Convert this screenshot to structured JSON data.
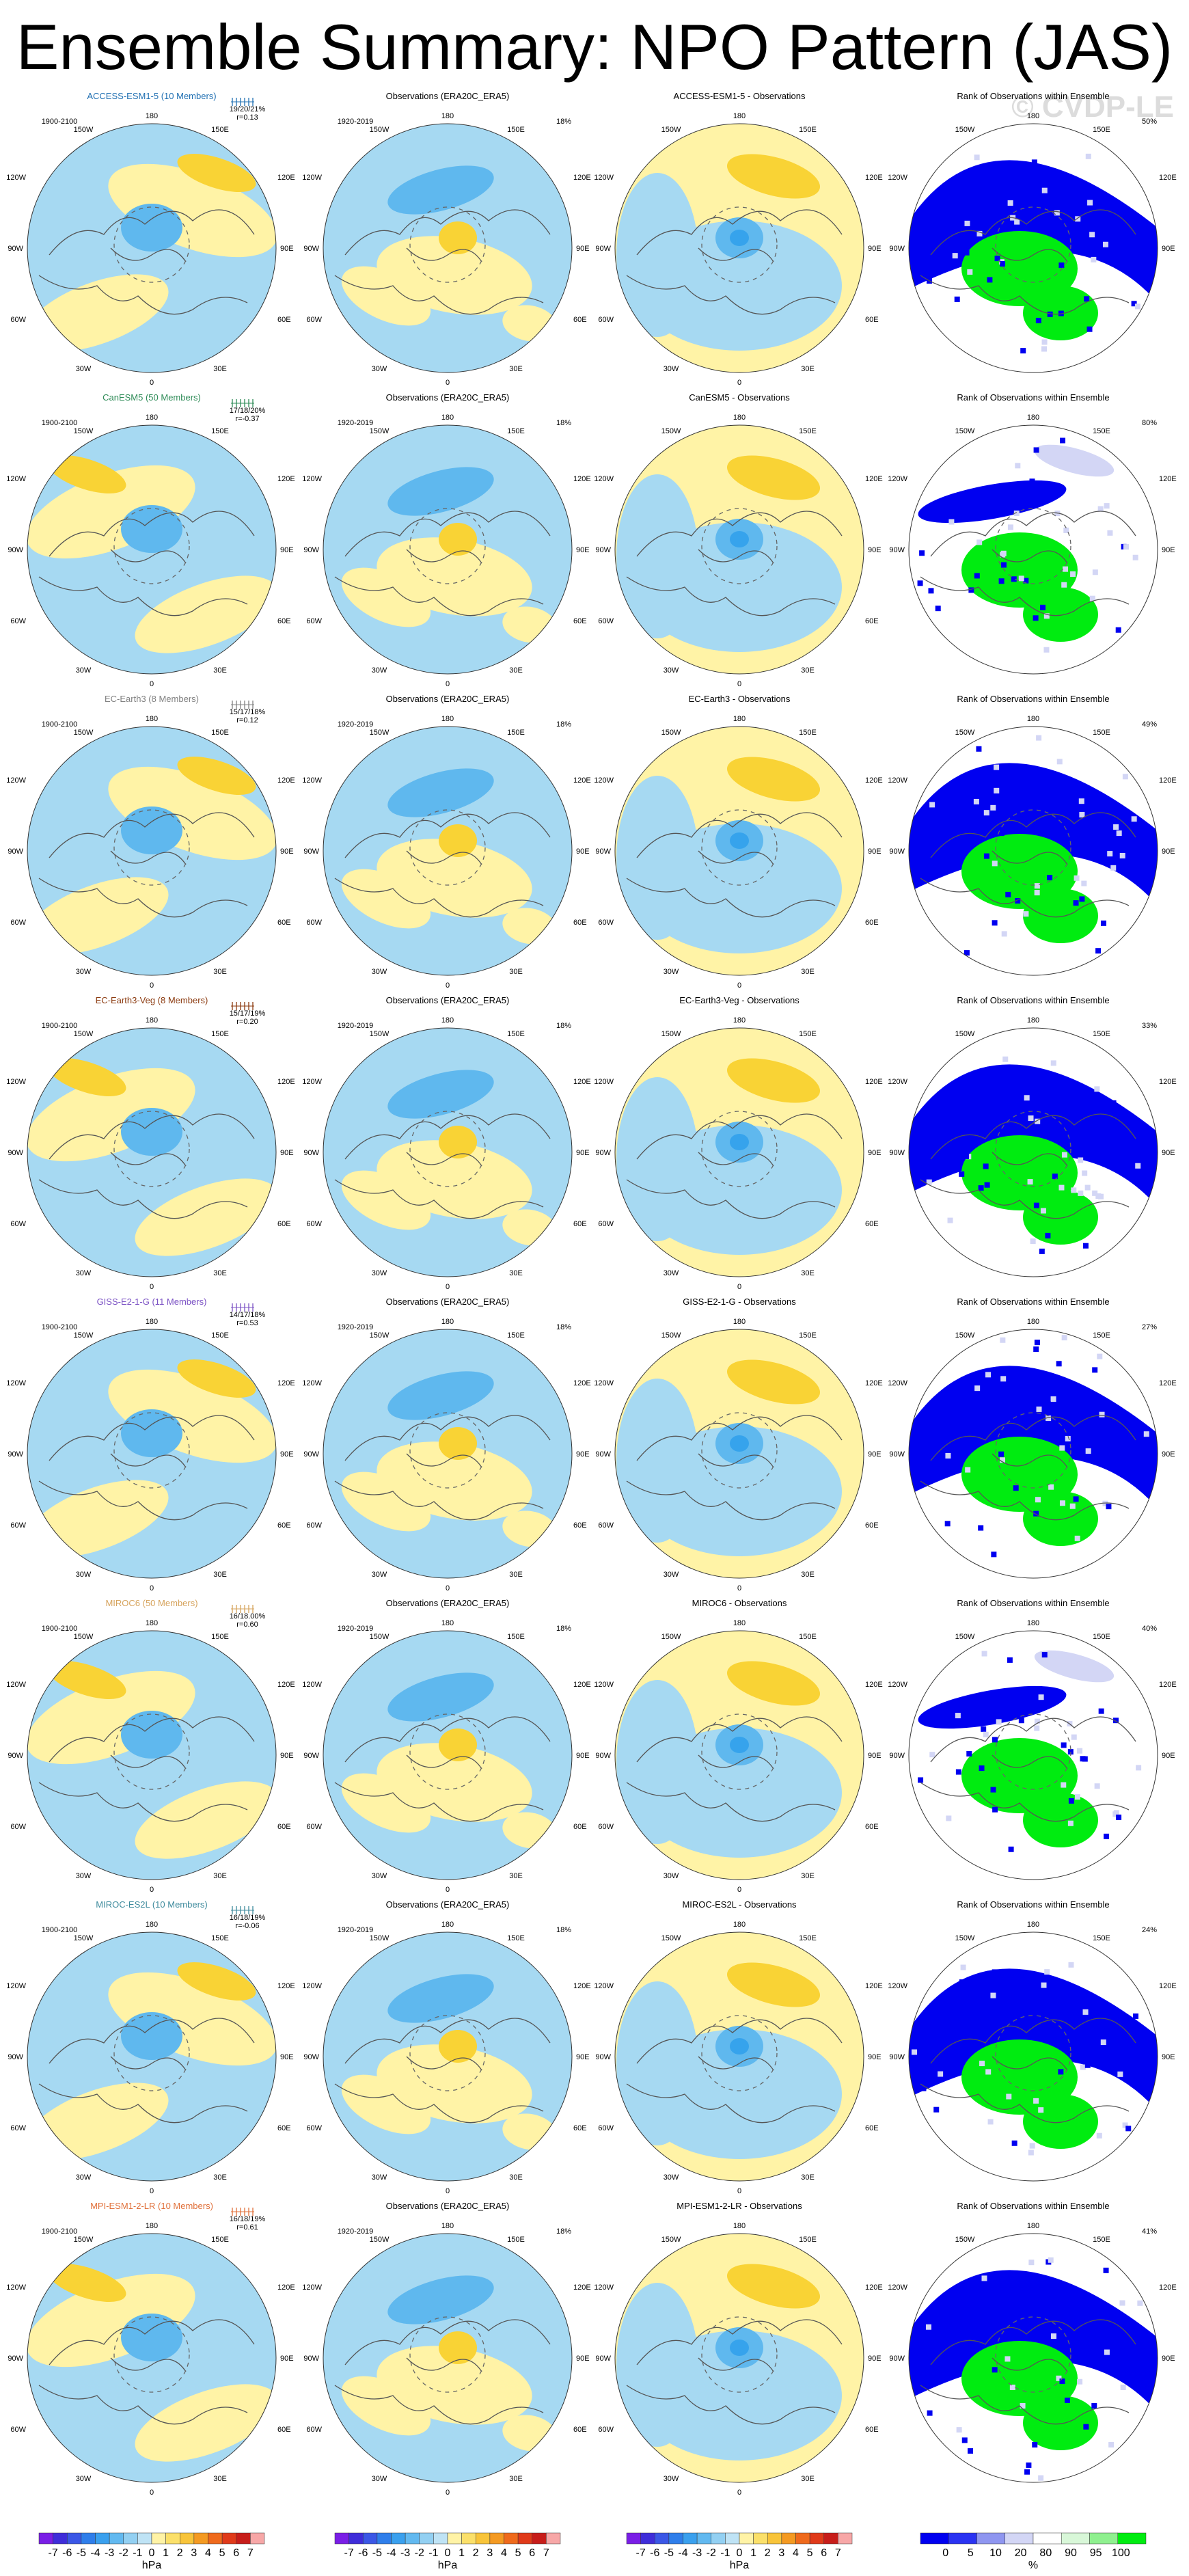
{
  "title": "Ensemble Summary: NPO Pattern (JAS)",
  "watermark": "© CVDP-LE",
  "colors": {
    "ocean_blue": "#a6d9f2",
    "light_blue": "#a6d9f2",
    "mid_blue": "#5fb8ee",
    "deep_blue": "#36a3ec",
    "pale_yellow": "#fff3a6",
    "gold": "#f9d335",
    "deep_gold": "#f6b928",
    "rank_blue": "#0000f0",
    "rank_light": "#d3d6f5",
    "rank_green": "#00ec10"
  },
  "rows": [
    {
      "model": "ACCESS-ESM1-5 (10 Members)",
      "model_color": "#1f6fb2",
      "model_period": "1900-2100",
      "pct_triplet": "19/20/21%",
      "r_value": "r=0.13",
      "obs_title": "Observations (ERA20C_ERA5)",
      "obs_period": "1920-2019",
      "obs_pct": "18%",
      "diff_title": "ACCESS-ESM1-5 - Observations",
      "rank_title": "Rank of Observations within Ensemble",
      "rank_pct": "50%"
    },
    {
      "model": "CanESM5 (50 Members)",
      "model_color": "#2e8b57",
      "model_period": "1900-2100",
      "pct_triplet": "17/18/20%",
      "r_value": "r=-0.37",
      "obs_title": "Observations (ERA20C_ERA5)",
      "obs_period": "1920-2019",
      "obs_pct": "18%",
      "diff_title": "CanESM5 - Observations",
      "rank_title": "Rank of Observations within Ensemble",
      "rank_pct": "80%"
    },
    {
      "model": "EC-Earth3 (8 Members)",
      "model_color": "#808080",
      "model_period": "1900-2100",
      "pct_triplet": "15/17/18%",
      "r_value": "r=0.12",
      "obs_title": "Observations (ERA20C_ERA5)",
      "obs_period": "1920-2019",
      "obs_pct": "18%",
      "diff_title": "EC-Earth3 - Observations",
      "rank_title": "Rank of Observations within Ensemble",
      "rank_pct": "49%"
    },
    {
      "model": "EC-Earth3-Veg (8 Members)",
      "model_color": "#8b3a0f",
      "model_period": "1900-2100",
      "pct_triplet": "15/17/19%",
      "r_value": "r=0.20",
      "obs_title": "Observations (ERA20C_ERA5)",
      "obs_period": "1920-2019",
      "obs_pct": "18%",
      "diff_title": "EC-Earth3-Veg - Observations",
      "rank_title": "Rank of Observations within Ensemble",
      "rank_pct": "33%"
    },
    {
      "model": "GISS-E2-1-G (11 Members)",
      "model_color": "#7b52c4",
      "model_period": "1900-2100",
      "pct_triplet": "14/17/18%",
      "r_value": "r=0.53",
      "obs_title": "Observations (ERA20C_ERA5)",
      "obs_period": "1920-2019",
      "obs_pct": "18%",
      "diff_title": "GISS-E2-1-G - Observations",
      "rank_title": "Rank of Observations within Ensemble",
      "rank_pct": "27%"
    },
    {
      "model": "MIROC6 (50 Members)",
      "model_color": "#d6a35c",
      "model_period": "1900-2100",
      "pct_triplet": "16/18.00%",
      "r_value": "r=0.60",
      "obs_title": "Observations (ERA20C_ERA5)",
      "obs_period": "1920-2019",
      "obs_pct": "18%",
      "diff_title": "MIROC6 - Observations",
      "rank_title": "Rank of Observations within Ensemble",
      "rank_pct": "40%"
    },
    {
      "model": "MIROC-ES2L (10 Members)",
      "model_color": "#3d8a9c",
      "model_period": "1900-2100",
      "pct_triplet": "16/18/19%",
      "r_value": "r=-0.06",
      "obs_title": "Observations (ERA20C_ERA5)",
      "obs_period": "1920-2019",
      "obs_pct": "18%",
      "diff_title": "MIROC-ES2L - Observations",
      "rank_title": "Rank of Observations within Ensemble",
      "rank_pct": "24%"
    },
    {
      "model": "MPI-ESM1-2-LR (10 Members)",
      "model_color": "#e0703a",
      "model_period": "1900-2100",
      "pct_triplet": "16/18/19%",
      "r_value": "r=0.61",
      "obs_title": "Observations (ERA20C_ERA5)",
      "obs_period": "1920-2019",
      "obs_pct": "18%",
      "diff_title": "MPI-ESM1-2-LR - Observations",
      "rank_title": "Rank of Observations within Ensemble",
      "rank_pct": "41%"
    }
  ],
  "map_labels": {
    "top": "180",
    "bottom": "0",
    "left": "90W",
    "right": "90E",
    "upper_left": [
      "150W",
      "120W"
    ],
    "upper_right": [
      "150E",
      "120E"
    ],
    "lower_left": [
      "60W",
      "30W"
    ],
    "lower_right": [
      "60E",
      "30E"
    ]
  },
  "chart_data": {
    "type": "heatmap",
    "title": "Ensemble Summary: NPO Pattern (JAS)",
    "panels_per_row": [
      "ensemble mean pattern",
      "observations",
      "ensemble mean minus observations",
      "rank of observations within ensemble"
    ],
    "colorbars": [
      {
        "unit": "hPa",
        "ticks": [
          "-7",
          "-6",
          "-5",
          "-4",
          "-3",
          "-2",
          "-1",
          "0",
          "1",
          "2",
          "3",
          "4",
          "5",
          "6",
          "7"
        ],
        "colors": [
          "#7a1ee6",
          "#3f2dd9",
          "#3b57e6",
          "#2f7eea",
          "#3aa0ee",
          "#62b9f0",
          "#93d0f2",
          "#bfe3f5",
          "#fff3a6",
          "#fbe06a",
          "#f8c43a",
          "#f49a22",
          "#ef6a1c",
          "#e03a1a",
          "#c71d1a",
          "#f7a7a7"
        ]
      },
      {
        "unit": "hPa",
        "ticks": [
          "-7",
          "-6",
          "-5",
          "-4",
          "-3",
          "-2",
          "-1",
          "0",
          "1",
          "2",
          "3",
          "4",
          "5",
          "6",
          "7"
        ],
        "colors": [
          "#7a1ee6",
          "#3f2dd9",
          "#3b57e6",
          "#2f7eea",
          "#3aa0ee",
          "#62b9f0",
          "#93d0f2",
          "#bfe3f5",
          "#fff3a6",
          "#fbe06a",
          "#f8c43a",
          "#f49a22",
          "#ef6a1c",
          "#e03a1a",
          "#c71d1a",
          "#f7a7a7"
        ]
      },
      {
        "unit": "hPa",
        "ticks": [
          "-7",
          "-6",
          "-5",
          "-4",
          "-3",
          "-2",
          "-1",
          "0",
          "1",
          "2",
          "3",
          "4",
          "5",
          "6",
          "7"
        ],
        "colors": [
          "#7a1ee6",
          "#3f2dd9",
          "#3b57e6",
          "#2f7eea",
          "#3aa0ee",
          "#62b9f0",
          "#93d0f2",
          "#bfe3f5",
          "#fff3a6",
          "#fbe06a",
          "#f8c43a",
          "#f49a22",
          "#ef6a1c",
          "#e03a1a",
          "#c71d1a",
          "#f7a7a7"
        ]
      },
      {
        "unit": "%",
        "ticks": [
          "0",
          "5",
          "10",
          "20",
          "80",
          "90",
          "95",
          "100"
        ],
        "colors": [
          "#0000f0",
          "#2a33f2",
          "#8f96f0",
          "#d3d6f5",
          "#ffffff",
          "#d8f7d8",
          "#8ff08f",
          "#00ec10"
        ]
      }
    ]
  }
}
